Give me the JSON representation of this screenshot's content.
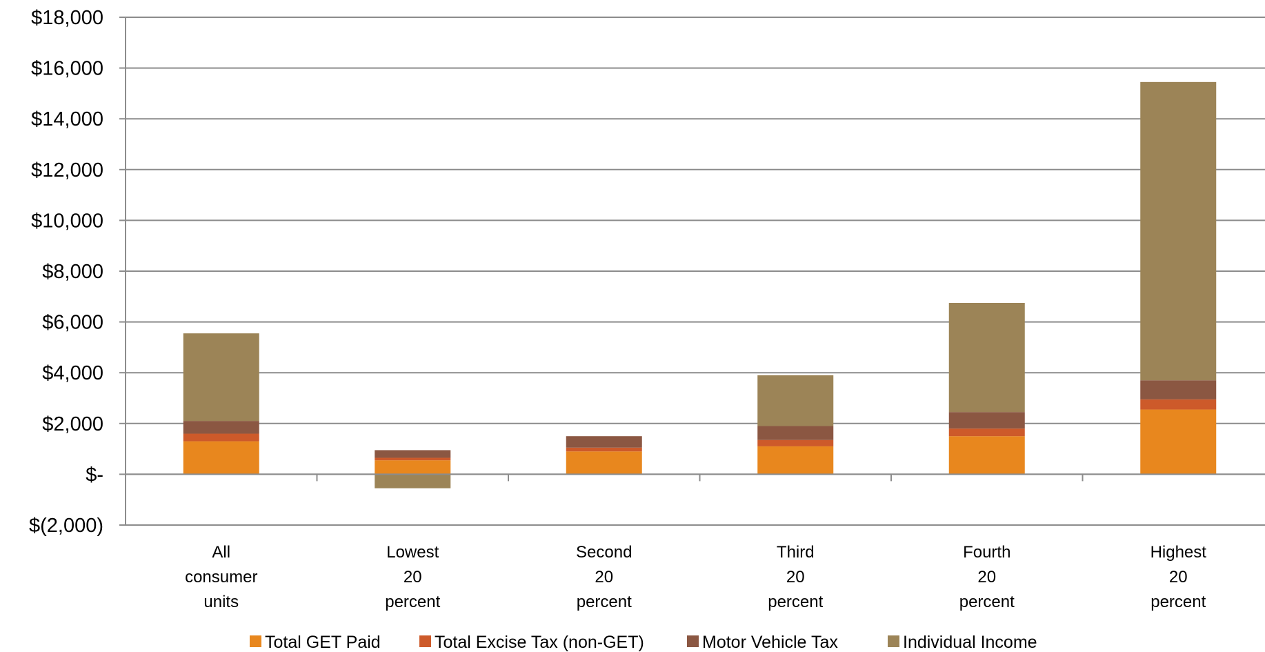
{
  "chart_data": {
    "type": "bar",
    "stacked": true,
    "title": "",
    "xlabel": "",
    "ylabel": "",
    "ylim": [
      -2000,
      18000
    ],
    "y_ticks": [
      -2000,
      0,
      2000,
      4000,
      6000,
      8000,
      10000,
      12000,
      14000,
      16000,
      18000
    ],
    "y_tick_labels": [
      "$(2,000)",
      "$-",
      "$2,000",
      "$4,000",
      "$6,000",
      "$8,000",
      "$10,000",
      "$12,000",
      "$14,000",
      "$16,000",
      "$18,000"
    ],
    "grid": true,
    "legend_position": "bottom",
    "categories": [
      [
        "All",
        "consumer",
        "units"
      ],
      [
        "Lowest",
        "20",
        "percent"
      ],
      [
        "Second",
        "20",
        "percent"
      ],
      [
        "Third",
        "20",
        "percent"
      ],
      [
        "Fourth",
        "20",
        "percent"
      ],
      [
        "Highest",
        "20",
        "percent"
      ]
    ],
    "series": [
      {
        "name": "Total GET Paid",
        "color": "#E8871E",
        "values": [
          1300,
          550,
          900,
          1100,
          1500,
          2550
        ]
      },
      {
        "name": "Total Excise Tax (non-GET)",
        "color": "#CD5A2A",
        "values": [
          300,
          100,
          150,
          250,
          300,
          400
        ]
      },
      {
        "name": "Motor Vehicle Tax",
        "color": "#8B5742",
        "values": [
          500,
          300,
          450,
          550,
          650,
          750
        ]
      },
      {
        "name": "Individual Income",
        "color": "#9C8457",
        "values": [
          3450,
          -550,
          0,
          2000,
          4300,
          11750
        ]
      }
    ]
  }
}
